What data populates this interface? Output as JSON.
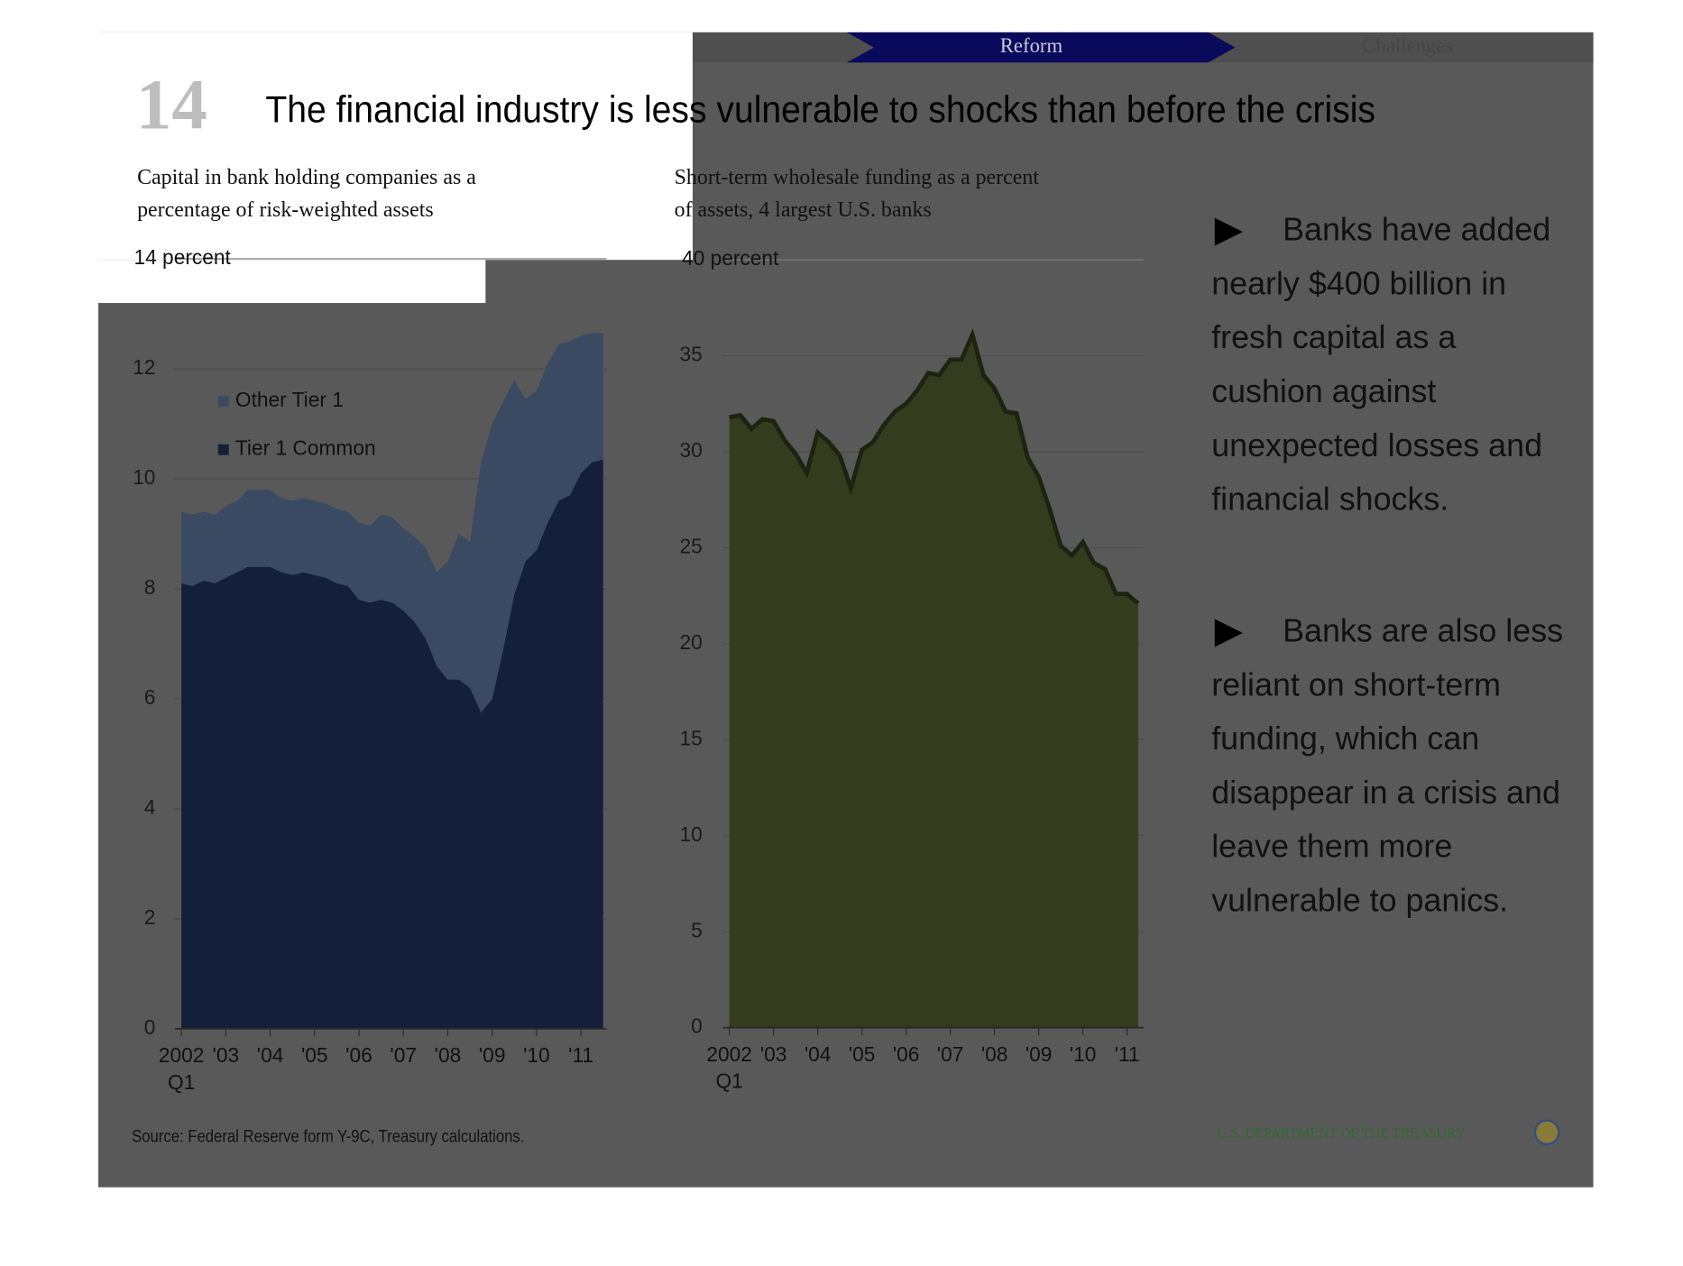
{
  "slide": {
    "number": "14",
    "title": "The financial industry is less vulnerable to shocks than before the crisis",
    "nav": [
      "Reform",
      "Challenges"
    ],
    "bullets": [
      [
        "Banks have added",
        "nearly  $400 billion in",
        "fresh capital as a",
        "cushion against",
        "unexpected losses and",
        "financial shocks."
      ],
      [
        "Banks are also less",
        "reliant on short-term",
        "funding, which can",
        "disappear in a crisis and",
        "leave them more",
        "vulnerable to panics."
      ]
    ],
    "source": "Source: Federal Reserve form Y-9C, Treasury calculations.",
    "footer": "U.S. DEPARTMENT OF THE TREASURY"
  },
  "chart_data": [
    {
      "type": "area",
      "stacked": true,
      "title": [
        "Capital in bank holding companies as a",
        "percentage of risk-weighted assets"
      ],
      "categories": [
        "2002",
        null,
        null,
        null,
        "'03",
        null,
        null,
        null,
        "'04",
        null,
        null,
        null,
        "'05",
        null,
        null,
        null,
        "'06",
        null,
        null,
        null,
        "'07",
        null,
        null,
        null,
        "'08",
        null,
        null,
        null,
        "'09",
        null,
        null,
        null,
        "'10",
        null,
        null,
        null,
        "'11",
        null,
        null
      ],
      "x_sublabel": "Q1",
      "series": [
        {
          "name": "Tier 1 Common",
          "color": "#14203a",
          "values": [
            8.1,
            8.05,
            8.15,
            8.1,
            8.2,
            8.3,
            8.4,
            8.4,
            8.4,
            8.3,
            8.25,
            8.3,
            8.25,
            8.2,
            8.1,
            8.05,
            7.8,
            7.75,
            7.8,
            7.75,
            7.6,
            7.4,
            7.1,
            6.6,
            6.35,
            6.35,
            6.2,
            5.75,
            6.0,
            6.9,
            7.9,
            8.5,
            8.7,
            9.2,
            9.6,
            9.7,
            10.1,
            10.3,
            10.35
          ]
        },
        {
          "name": "Other Tier 1",
          "color": "#3a4a63",
          "values": [
            1.3,
            1.3,
            1.25,
            1.25,
            1.3,
            1.3,
            1.4,
            1.4,
            1.4,
            1.35,
            1.35,
            1.35,
            1.35,
            1.35,
            1.35,
            1.35,
            1.4,
            1.4,
            1.55,
            1.55,
            1.5,
            1.55,
            1.65,
            1.7,
            2.15,
            2.65,
            2.65,
            4.55,
            5.0,
            4.5,
            3.9,
            2.95,
            2.9,
            2.9,
            2.85,
            2.8,
            2.5,
            2.35,
            2.3
          ]
        }
      ],
      "ylim": [
        0,
        14
      ],
      "yticks": [
        0,
        2,
        4,
        6,
        8,
        10,
        12,
        {
          "value": 14,
          "label": "14 percent"
        }
      ],
      "grid": true,
      "legend": "top-left"
    },
    {
      "type": "area",
      "stacked": false,
      "title": [
        "Short-term wholesale funding as a percent",
        "of assets, 4 largest U.S. banks"
      ],
      "categories": [
        "2002",
        null,
        null,
        null,
        "'03",
        null,
        null,
        null,
        "'04",
        null,
        null,
        null,
        "'05",
        null,
        null,
        null,
        "'06",
        null,
        null,
        null,
        "'07",
        null,
        null,
        null,
        "'08",
        null,
        null,
        null,
        "'09",
        null,
        null,
        null,
        "'10",
        null,
        null,
        null,
        "'11",
        null
      ],
      "x_sublabel": "Q1",
      "series": [
        {
          "color": "#333d1d",
          "line_color": "#1c2410",
          "values": [
            31.8,
            31.9,
            31.2,
            31.7,
            31.6,
            30.6,
            29.9,
            28.9,
            31.0,
            30.5,
            29.8,
            28.1,
            30.1,
            30.5,
            31.4,
            32.1,
            32.5,
            33.2,
            34.1,
            34.0,
            34.8,
            34.8,
            36.1,
            34.0,
            33.3,
            32.1,
            32.0,
            29.7,
            28.7,
            27.0,
            25.1,
            24.6,
            25.3,
            24.2,
            23.9,
            22.6,
            22.6,
            22.1
          ]
        }
      ],
      "ylim": [
        0,
        40
      ],
      "yticks": [
        0,
        5,
        10,
        15,
        20,
        25,
        30,
        35,
        {
          "value": 40,
          "label": "40 percent"
        }
      ],
      "grid": true
    }
  ]
}
